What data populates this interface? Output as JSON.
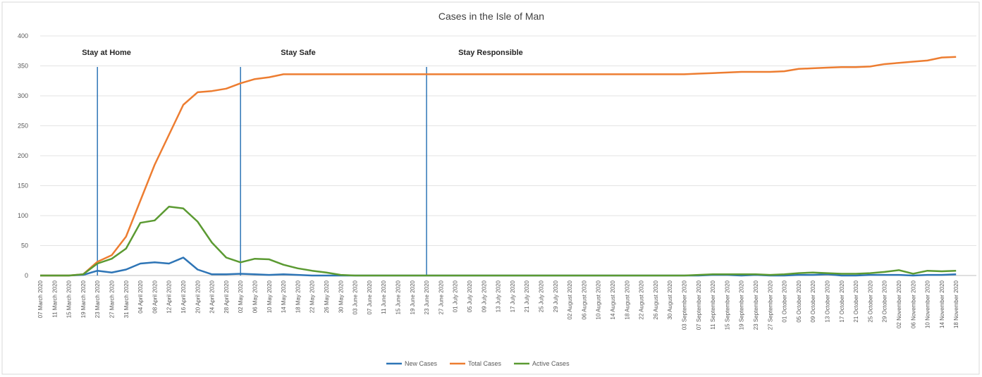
{
  "chart_data": {
    "type": "line",
    "title": "Cases in the Isle of Man",
    "categories": [
      "07 March 2020",
      "11 March 2020",
      "15 March 2020",
      "19 March 2020",
      "23 March 2020",
      "27 March 2020",
      "31 March 2020",
      "04 April 2020",
      "08 April 2020",
      "12 April 2020",
      "16 April 2020",
      "20 April 2020",
      "24 April 2020",
      "28 April 2020",
      "02 May 2020",
      "06 May 2020",
      "10 May 2020",
      "14 May 2020",
      "18 May 2020",
      "22 May 2020",
      "26 May 2020",
      "30 May 2020",
      "03 June 2020",
      "07 June 2020",
      "11 June 2020",
      "15 June 2020",
      "19 June 2020",
      "23 June 2020",
      "27 June 2020",
      "01 July 2020",
      "05 July 2020",
      "09 July 2020",
      "13 July 2020",
      "17 July 2020",
      "21 July 2020",
      "25 July 2020",
      "29 July 2020",
      "02 August 2020",
      "06 August 2020",
      "10 August 2020",
      "14 August 2020",
      "18 August 2020",
      "22 August 2020",
      "26 August 2020",
      "30 August 2020",
      "03 September 2020",
      "07 September 2020",
      "11 September 2020",
      "15 September 2020",
      "19 September 2020",
      "23 September 2020",
      "27 September 2020",
      "01 October 2020",
      "05 October 2020",
      "09 October 2020",
      "13 October 2020",
      "17 October 2020",
      "21 October 2020",
      "25 October 2020",
      "29 October 2020",
      "02 November 2020",
      "06 November 2020",
      "10 November 2020",
      "14 November 2020",
      "18 November 2020"
    ],
    "series": [
      {
        "name": "New Cases",
        "color": "#2e75b6",
        "values": [
          0,
          0,
          0,
          1,
          8,
          5,
          10,
          20,
          22,
          20,
          30,
          10,
          2,
          2,
          3,
          2,
          1,
          2,
          1,
          0,
          0,
          0,
          0,
          0,
          0,
          0,
          0,
          0,
          0,
          0,
          0,
          0,
          0,
          0,
          0,
          0,
          0,
          0,
          0,
          0,
          0,
          0,
          0,
          0,
          0,
          0,
          0,
          1,
          1,
          0,
          1,
          0,
          0,
          1,
          1,
          2,
          0,
          0,
          1,
          1,
          1,
          0,
          1,
          1,
          2
        ]
      },
      {
        "name": "Total Cases",
        "color": "#ed7d31",
        "values": [
          0,
          0,
          0,
          2,
          23,
          34,
          65,
          125,
          185,
          235,
          285,
          306,
          308,
          312,
          321,
          328,
          331,
          336,
          336,
          336,
          336,
          336,
          336,
          336,
          336,
          336,
          336,
          336,
          336,
          336,
          336,
          336,
          336,
          336,
          336,
          336,
          336,
          336,
          336,
          336,
          336,
          336,
          336,
          336,
          336,
          336,
          337,
          338,
          339,
          340,
          340,
          340,
          341,
          345,
          346,
          347,
          348,
          348,
          349,
          353,
          355,
          357,
          359,
          364,
          365
        ]
      },
      {
        "name": "Active Cases",
        "color": "#5b9a32",
        "values": [
          0,
          0,
          0,
          2,
          20,
          28,
          45,
          88,
          92,
          115,
          112,
          90,
          55,
          30,
          22,
          28,
          27,
          18,
          12,
          8,
          5,
          1,
          0,
          0,
          0,
          0,
          0,
          0,
          0,
          0,
          0,
          0,
          0,
          0,
          0,
          0,
          0,
          0,
          0,
          0,
          0,
          0,
          0,
          0,
          0,
          0,
          1,
          2,
          2,
          2,
          2,
          1,
          2,
          4,
          5,
          4,
          3,
          3,
          4,
          6,
          9,
          3,
          8,
          7,
          8
        ]
      }
    ],
    "annotations": [
      {
        "text": "Stay at Home",
        "x": "23 March 2020"
      },
      {
        "text": "Stay Safe",
        "x": "02 May 2020"
      },
      {
        "text": "Stay Responsible",
        "x": "23 June 2020"
      }
    ],
    "annotation_color": "#2e75b6",
    "ylim": [
      0,
      400
    ],
    "yticks": [
      0,
      50,
      100,
      150,
      200,
      250,
      300,
      350,
      400
    ],
    "grid": true,
    "legend": "bottom"
  }
}
